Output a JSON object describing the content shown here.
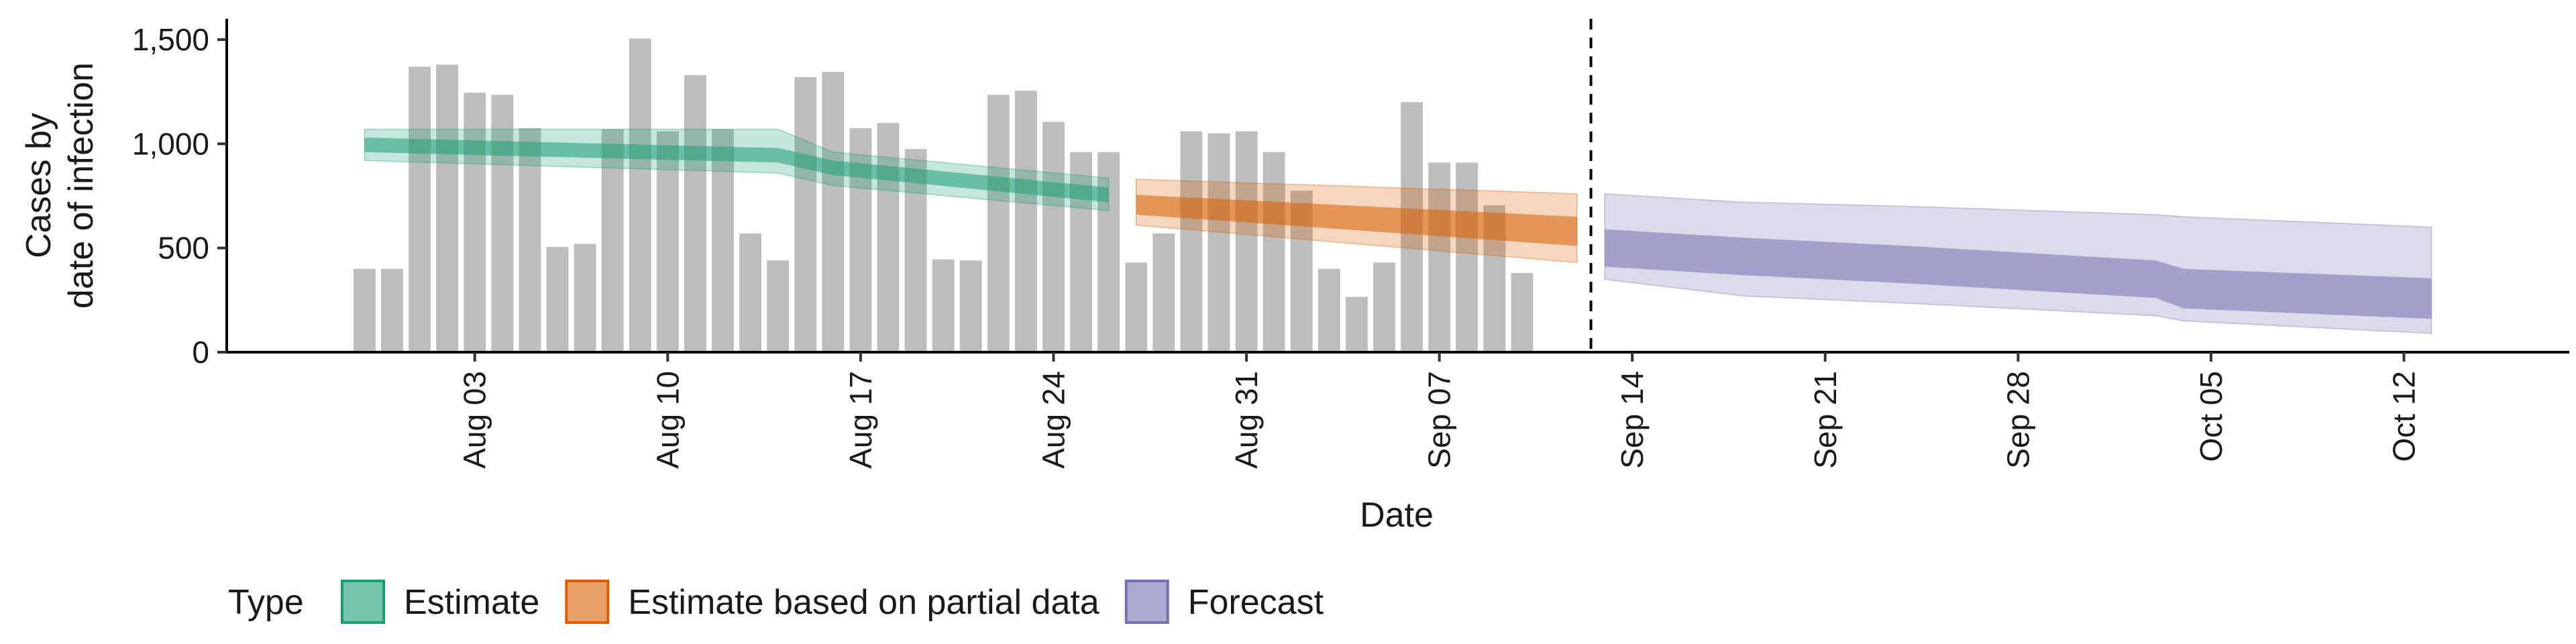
{
  "chart_data": {
    "type": "bar",
    "title": "",
    "xlabel": "Date",
    "ylabel": [
      "Cases by",
      "date of infection"
    ],
    "ylim": [
      0,
      1600
    ],
    "yticks": [
      0,
      500,
      1000,
      1500
    ],
    "ytick_labels": [
      "0",
      "500",
      "1,000",
      "1,500"
    ],
    "xlim": [
      "2024-07-25",
      "2024-10-18"
    ],
    "xticks": [
      "2024-08-03",
      "2024-08-10",
      "2024-08-17",
      "2024-08-24",
      "2024-08-31",
      "2024-09-07",
      "2024-09-14",
      "2024-09-21",
      "2024-09-28",
      "2024-10-05",
      "2024-10-12"
    ],
    "xtick_labels": [
      "Aug 03",
      "Aug 10",
      "Aug 17",
      "Aug 24",
      "Aug 31",
      "Sep 07",
      "Sep 14",
      "Sep 21",
      "Sep 28",
      "Oct 05",
      "Oct 12"
    ],
    "grid": false,
    "legend_placement": "bottom",
    "legend_title": "Type",
    "vline_date": "2024-09-12",
    "bar_color": "#bdbdbd",
    "bars": {
      "start_date": "2024-07-30",
      "values": [
        400,
        400,
        1370,
        1380,
        1245,
        1235,
        1075,
        505,
        520,
        1070,
        1505,
        1060,
        1330,
        1070,
        570,
        440,
        1320,
        1345,
        1075,
        1100,
        975,
        445,
        440,
        1235,
        1255,
        1105,
        960,
        960,
        430,
        570,
        1060,
        1050,
        1060,
        960,
        775,
        400,
        265,
        430,
        1200,
        910,
        910,
        705,
        380
      ]
    },
    "series": [
      {
        "name": "Estimate",
        "color": "#1b9e77",
        "x": [
          "2024-07-30",
          "2024-08-14",
          "2024-08-16",
          "2024-08-26"
        ],
        "median": [
          1000,
          950,
          890,
          755
        ],
        "inner_lower": [
          960,
          910,
          850,
          720
        ],
        "inner_upper": [
          1030,
          980,
          920,
          790
        ],
        "outer_lower": [
          920,
          860,
          800,
          680
        ],
        "outer_upper": [
          1070,
          1070,
          960,
          835
        ]
      },
      {
        "name": "Estimate based on partial data",
        "color": "#d95f02",
        "x": [
          "2024-08-27",
          "2024-09-12"
        ],
        "median": [
          710,
          590
        ],
        "inner_lower": [
          660,
          510
        ],
        "inner_upper": [
          755,
          650
        ],
        "outer_lower": [
          610,
          430
        ],
        "outer_upper": [
          830,
          760
        ]
      },
      {
        "name": "Forecast",
        "color": "#7570b3",
        "x": [
          "2024-09-13",
          "2024-09-18",
          "2024-09-24",
          "2024-10-03",
          "2024-10-04",
          "2024-10-13"
        ],
        "median": [
          500,
          460,
          430,
          360,
          310,
          255
        ],
        "inner_lower": [
          410,
          370,
          330,
          260,
          210,
          160
        ],
        "inner_upper": [
          590,
          550,
          510,
          440,
          400,
          355
        ],
        "outer_lower": [
          350,
          270,
          235,
          175,
          150,
          90
        ],
        "outer_upper": [
          760,
          720,
          700,
          660,
          650,
          600
        ]
      }
    ]
  }
}
